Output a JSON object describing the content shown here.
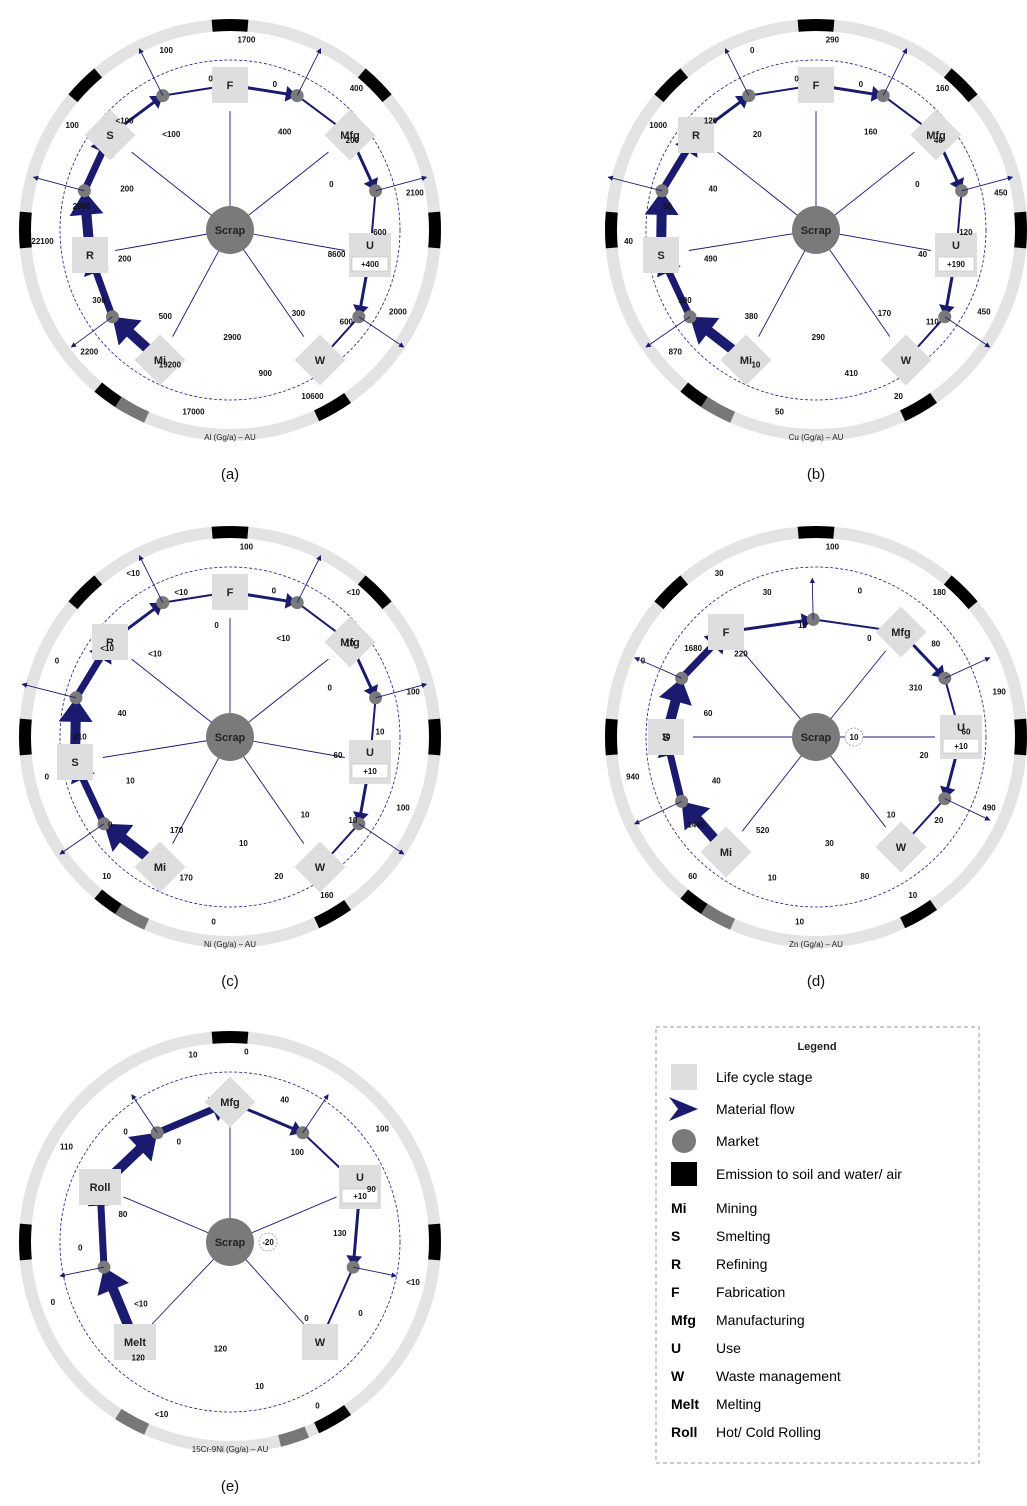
{
  "panels": [
    {
      "id": "a",
      "caption": "(a)",
      "title": "Al (Gg/a) – AU",
      "change": "+400",
      "nodes": {
        "mi": "Mi",
        "s": "S",
        "r": "R",
        "f": "F",
        "mfg": "Mfg",
        "u": "U",
        "w": "W"
      },
      "flows": [
        "1700",
        "0",
        "400",
        "400",
        "200",
        "0",
        "2100",
        "600",
        "8600",
        "2000",
        "600",
        "300",
        "10600",
        "900",
        "2900",
        "17000",
        "19200",
        "500",
        "2200",
        "300",
        "200",
        "22100",
        "2900",
        "200",
        "100",
        "<100",
        "<100",
        "100",
        "0"
      ]
    },
    {
      "id": "b",
      "caption": "(b)",
      "title": "Cu (Gg/a) – AU",
      "change": "+190",
      "nodes": {
        "mi": "Mi",
        "s": "S",
        "r": "R",
        "f": "F",
        "mfg": "Mfg",
        "u": "U",
        "w": "W"
      },
      "flows": [
        "290",
        "0",
        "160",
        "160",
        "40",
        "0",
        "450",
        "120",
        "40",
        "450",
        "110",
        "170",
        "20",
        "410",
        "290",
        "50",
        "10",
        "380",
        "870",
        "100",
        "490",
        "40",
        "60",
        "40",
        "1000",
        "120",
        "20",
        "0",
        "0"
      ]
    },
    {
      "id": "c",
      "caption": "(c)",
      "title": "Ni (Gg/a) – AU",
      "change": "+10",
      "nodes": {
        "mi": "Mi",
        "s": "S",
        "r": "R",
        "f": "F",
        "mfg": "Mfg",
        "u": "U",
        "w": "W"
      },
      "flows": [
        "100",
        "0",
        "<10",
        "<10",
        "10",
        "0",
        "100",
        "10",
        "60",
        "100",
        "10",
        "10",
        "160",
        "20",
        "10",
        "0",
        "170",
        "170",
        "10",
        "0",
        "10",
        "0",
        "210",
        "40",
        "0",
        "<10",
        "<10",
        "<10",
        "<10",
        "0"
      ]
    },
    {
      "id": "d",
      "caption": "(d)",
      "title": "Zn (Gg/a) – AU",
      "change": "+10",
      "scrap_stock": "10",
      "nodes": {
        "mi": "Mi",
        "s": "S",
        "f": "F",
        "mfg": "Mfg",
        "u": "U",
        "w": "W"
      },
      "flows": [
        "100",
        "0",
        "0",
        "180",
        "80",
        "310",
        "190",
        "60",
        "20",
        "490",
        "20",
        "10",
        "10",
        "80",
        "30",
        "10",
        "10",
        "520",
        "60",
        "1460",
        "40",
        "940",
        "10",
        "60",
        "0",
        "1680",
        "220",
        "30",
        "30",
        "10"
      ]
    },
    {
      "id": "e",
      "caption": "(e)",
      "title": "15Cr-9Ni (Gg/a) – AU",
      "change": "+10",
      "scrap_stock": "-20",
      "nodes": {
        "roll": "Roll",
        "melt": "Melt",
        "mfg": "Mfg",
        "u": "U",
        "w": "W"
      },
      "flows": [
        "0",
        "40",
        "100",
        "100",
        "90",
        "130",
        "<10",
        "0",
        "0",
        "0",
        "10",
        "120",
        "<10",
        "120",
        "<10",
        "0",
        "0",
        "80",
        "110",
        "0",
        "0",
        "10"
      ]
    }
  ],
  "scrap_label": "Scrap",
  "legend": {
    "title": "Legend",
    "symbols": [
      {
        "name": "life-cycle-stage",
        "label": "Life cycle stage"
      },
      {
        "name": "material-flow",
        "label": "Material flow"
      },
      {
        "name": "market",
        "label": "Market"
      },
      {
        "name": "emission",
        "label": "Emission to soil and water/ air"
      }
    ],
    "abbr": [
      {
        "k": "Mi",
        "v": "Mining"
      },
      {
        "k": "S",
        "v": "Smelting"
      },
      {
        "k": "R",
        "v": "Refining"
      },
      {
        "k": "F",
        "v": "Fabrication"
      },
      {
        "k": "Mfg",
        "v": "Manufacturing"
      },
      {
        "k": "U",
        "v": "Use"
      },
      {
        "k": "W",
        "v": "Waste management"
      },
      {
        "k": "Melt",
        "v": "Melting"
      },
      {
        "k": "Roll",
        "v": "Hot/ Cold Rolling"
      }
    ]
  },
  "colors": {
    "flow": "#1a1a6e",
    "ring": "#e3e3e3",
    "stage": "#dedede",
    "market": "#7a7a7a",
    "emission": "#000000",
    "dashed": "#1a1a8e"
  }
}
